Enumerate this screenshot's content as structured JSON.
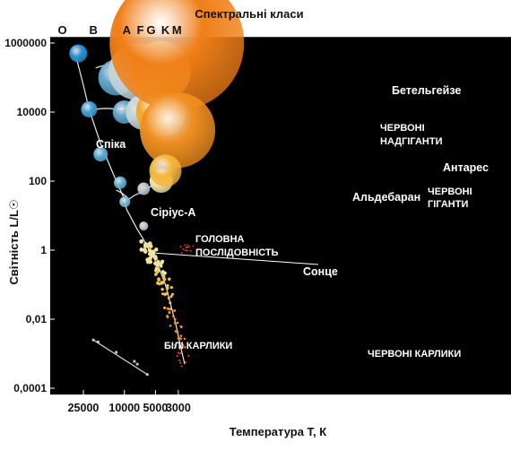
{
  "chart_data": {
    "type": "scatter",
    "title": "Спектральні класи",
    "xlabel": "Температура T, К",
    "ylabel": "Світність L/L☉",
    "x_scale": "log",
    "x_reversed": true,
    "y_scale": "log",
    "xlim": [
      40000,
      2200
    ],
    "ylim": [
      0.0001,
      1000000
    ],
    "x_ticks": [
      {
        "value": 25000,
        "label": "25000"
      },
      {
        "value": 10000,
        "label": "10000"
      },
      {
        "value": 5000,
        "label": "5000"
      },
      {
        "value": 3000,
        "label": "3000"
      }
    ],
    "y_ticks": [
      {
        "value": 1000000,
        "label": "1000000"
      },
      {
        "value": 10000,
        "label": "10000"
      },
      {
        "value": 100,
        "label": "100"
      },
      {
        "value": 1,
        "label": "1"
      },
      {
        "value": 0.01,
        "label": "0,01"
      },
      {
        "value": 0.0001,
        "label": "0,0001"
      }
    ],
    "spectral_classes": [
      {
        "label": "O",
        "temp": 40000
      },
      {
        "label": "B",
        "temp": 20000
      },
      {
        "label": "A",
        "temp": 9500
      },
      {
        "label": "F",
        "temp": 7000
      },
      {
        "label": "G",
        "temp": 5500
      },
      {
        "label": "K",
        "temp": 4000
      },
      {
        "label": "M",
        "temp": 3100
      }
    ],
    "named_stars": [
      {
        "label": "Спіка",
        "temp": 22000,
        "lum": 12000
      },
      {
        "label": "Сіріус-А",
        "temp": 9900,
        "lum": 25
      },
      {
        "label": "Сонце",
        "temp": 5800,
        "lum": 1
      },
      {
        "label": "Альдебаран",
        "temp": 4000,
        "lum": 150
      },
      {
        "label": "Бетельгейзе",
        "temp": 3500,
        "lum": 100000
      },
      {
        "label": "Антарес",
        "temp": 3400,
        "lum": 60000
      }
    ],
    "region_labels": [
      "ЧЕРВОНІ НАДГІГАНТИ",
      "ЧЕРВОНІ ГІГАНТИ",
      "ГОЛОВНА ПОСЛІДОВНІСТЬ",
      "БІЛІ КАРЛИКИ",
      "ЧЕРВОНІ КАРЛИКИ"
    ],
    "main_sequence": [
      {
        "temp": 30000,
        "lum": 500000
      },
      {
        "temp": 25000,
        "lum": 60000
      },
      {
        "temp": 22000,
        "lum": 12000
      },
      {
        "temp": 17000,
        "lum": 1200
      },
      {
        "temp": 12000,
        "lum": 100
      },
      {
        "temp": 10000,
        "lum": 30
      },
      {
        "temp": 9500,
        "lum": 15
      },
      {
        "temp": 8500,
        "lum": 8
      },
      {
        "temp": 7500,
        "lum": 4
      },
      {
        "temp": 6500,
        "lum": 2
      },
      {
        "temp": 6000,
        "lum": 1.3
      },
      {
        "temp": 5800,
        "lum": 1
      },
      {
        "temp": 5200,
        "lum": 0.6
      },
      {
        "temp": 4600,
        "lum": 0.3
      },
      {
        "temp": 4000,
        "lum": 0.1
      },
      {
        "temp": 3600,
        "lum": 0.03
      },
      {
        "temp": 3200,
        "lum": 0.008
      },
      {
        "temp": 2900,
        "lum": 0.002
      },
      {
        "temp": 2600,
        "lum": 0.0005
      }
    ],
    "giant_tracks": [
      [
        {
          "temp": 19000,
          "lum": 190000
        },
        {
          "temp": 12000,
          "lum": 250000
        },
        {
          "temp": 8000,
          "lum": 300000
        },
        {
          "temp": 5000,
          "lum": 400000
        },
        {
          "temp": 4000,
          "lum": 500000
        }
      ],
      [
        {
          "temp": 19000,
          "lum": 12000
        },
        {
          "temp": 12000,
          "lum": 12000
        },
        {
          "temp": 8000,
          "lum": 12000
        },
        {
          "temp": 5000,
          "lum": 14000
        },
        {
          "temp": 4000,
          "lum": 16000
        }
      ],
      [
        {
          "temp": 12000,
          "lum": 55
        },
        {
          "temp": 9000,
          "lum": 30
        },
        {
          "temp": 7000,
          "lum": 45
        },
        {
          "temp": 5500,
          "lum": 70
        },
        {
          "temp": 4500,
          "lum": 130
        },
        {
          "temp": 3800,
          "lum": 200
        }
      ]
    ],
    "white_dwarfs": [
      {
        "temp": 20000,
        "lum": 0.0025
      },
      {
        "temp": 18000,
        "lum": 0.0022
      },
      {
        "temp": 12000,
        "lum": 0.0011
      },
      {
        "temp": 8000,
        "lum": 0.0006
      },
      {
        "temp": 7500,
        "lum": 0.0005
      },
      {
        "temp": 6000,
        "lum": 0.00025
      }
    ],
    "big_stars": [
      {
        "temp": 12000,
        "lum": 100000,
        "r": 20,
        "color": "#5fa6cc"
      },
      {
        "temp": 10000,
        "lum": 10000,
        "r": 13,
        "color": "#5fa6cc"
      },
      {
        "temp": 7500,
        "lum": 150000,
        "r": 32,
        "color": "#c8d3d6"
      },
      {
        "temp": 6500,
        "lum": 10000,
        "r": 20,
        "color": "#c8d3d6"
      },
      {
        "temp": 4500,
        "lum": 150000,
        "r": 34,
        "color": "#f2c644"
      },
      {
        "temp": 4400,
        "lum": 10000,
        "r": 28,
        "color": "#f0a82c"
      },
      {
        "temp": 3100,
        "lum": 1000000,
        "r": 75,
        "color": "#f07f18"
      },
      {
        "temp": 3050,
        "lum": 3000,
        "r": 42,
        "color": "#f08f20"
      },
      {
        "temp": 4400,
        "lum": 100,
        "r": 13,
        "color": "#f4e3a0"
      },
      {
        "temp": 4000,
        "lum": 200,
        "r": 18,
        "color": "#f4b63c"
      },
      {
        "temp": 28000,
        "lum": 500000,
        "r": 10,
        "color": "#2a93d6"
      },
      {
        "temp": 22000,
        "lum": 12000,
        "r": 9,
        "color": "#44a2d8"
      },
      {
        "temp": 17000,
        "lum": 600,
        "r": 8,
        "color": "#5caed8"
      },
      {
        "temp": 11000,
        "lum": 90,
        "r": 7,
        "color": "#6ab2d6"
      },
      {
        "temp": 9900,
        "lum": 25,
        "r": 6,
        "color": "#7cbad6"
      },
      {
        "temp": 6500,
        "lum": 60,
        "r": 7,
        "color": "#b9c6cb"
      },
      {
        "temp": 6500,
        "lum": 5,
        "r": 5,
        "color": "#c3cbce"
      }
    ],
    "colors": {
      "background": "#000000",
      "frame": "#ffffff",
      "blue": "#2a93d6",
      "white": "#c8d3d6",
      "yellow": "#f2c644",
      "orange": "#f07f18",
      "red": "#d9482a"
    }
  }
}
